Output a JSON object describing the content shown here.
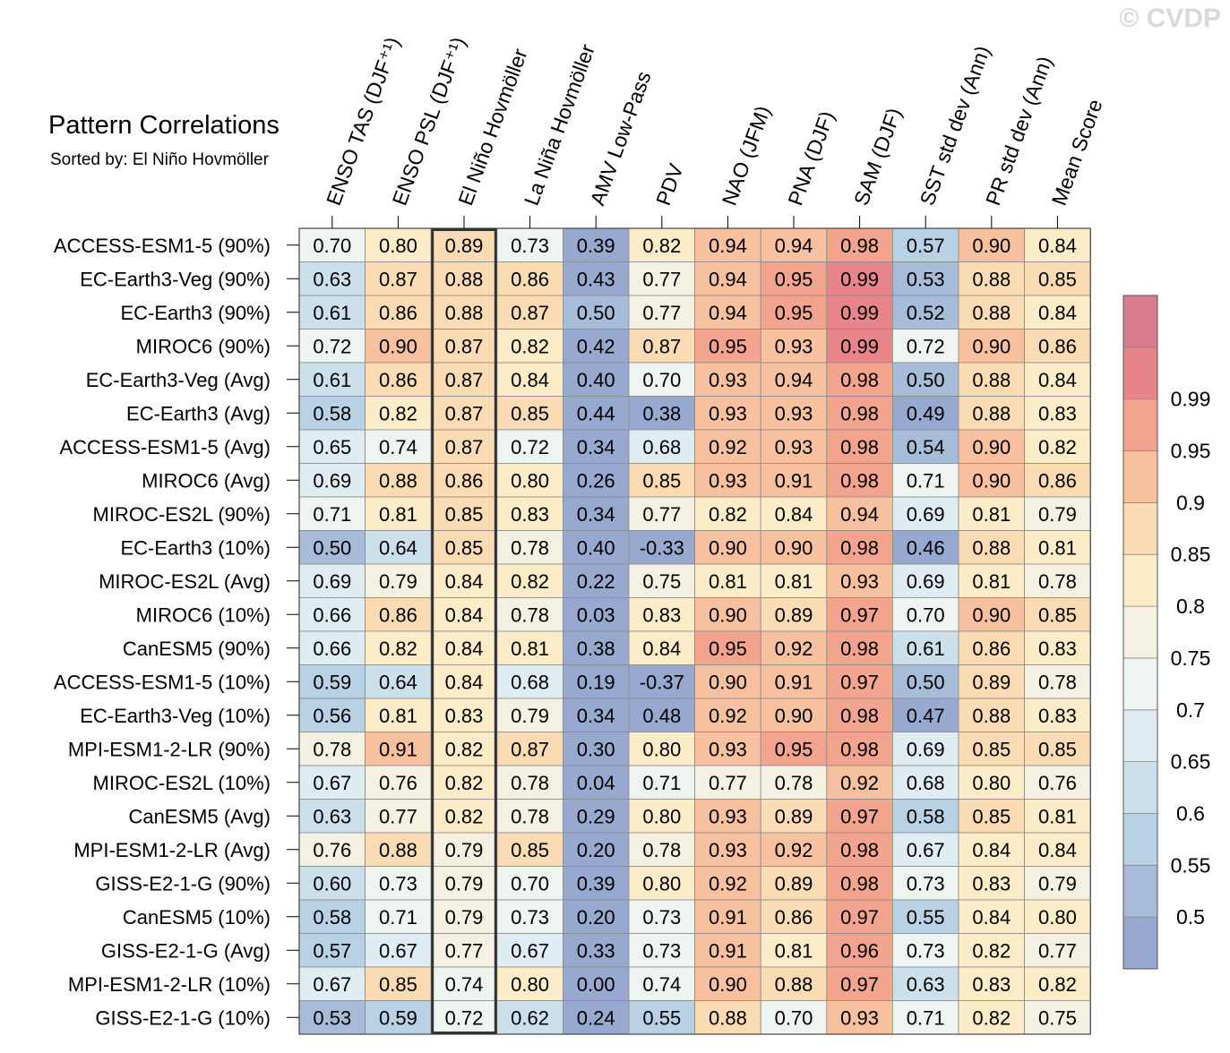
{
  "watermark": "© CVDP",
  "chart_data": {
    "type": "heatmap",
    "title": "Pattern Correlations",
    "subtitle": "Sorted by: El Niño Hovmöller",
    "sorted_column": "El Niño Hovmöller",
    "columns": [
      "ENSO TAS (DJF⁺¹)",
      "ENSO PSL (DJF⁺¹)",
      "El Niño Hovmöller",
      "La Niña Hovmöller",
      "AMV Low-Pass",
      "PDV",
      "NAO (JFM)",
      "PNA (DJF)",
      "SAM (DJF)",
      "SST std dev (Ann)",
      "PR std dev (Ann)",
      "Mean Score"
    ],
    "rows": [
      "ACCESS-ESM1-5 (90%)",
      "EC-Earth3-Veg (90%)",
      "EC-Earth3 (90%)",
      "MIROC6 (90%)",
      "EC-Earth3-Veg (Avg)",
      "EC-Earth3 (Avg)",
      "ACCESS-ESM1-5 (Avg)",
      "MIROC6 (Avg)",
      "MIROC-ES2L (90%)",
      "EC-Earth3 (10%)",
      "MIROC-ES2L (Avg)",
      "MIROC6 (10%)",
      "CanESM5 (90%)",
      "ACCESS-ESM1-5 (10%)",
      "EC-Earth3-Veg (10%)",
      "MPI-ESM1-2-LR (90%)",
      "MIROC-ES2L (10%)",
      "CanESM5 (Avg)",
      "MPI-ESM1-2-LR (Avg)",
      "GISS-E2-1-G (90%)",
      "CanESM5 (10%)",
      "GISS-E2-1-G (Avg)",
      "MPI-ESM1-2-LR (10%)",
      "GISS-E2-1-G (10%)"
    ],
    "values": [
      [
        "0.70",
        "0.80",
        "0.89",
        "0.73",
        "0.39",
        "0.82",
        "0.94",
        "0.94",
        "0.98",
        "0.57",
        "0.90",
        "0.84"
      ],
      [
        "0.63",
        "0.87",
        "0.88",
        "0.86",
        "0.43",
        "0.77",
        "0.94",
        "0.95",
        "0.99",
        "0.53",
        "0.88",
        "0.85"
      ],
      [
        "0.61",
        "0.86",
        "0.88",
        "0.87",
        "0.50",
        "0.77",
        "0.94",
        "0.95",
        "0.99",
        "0.52",
        "0.88",
        "0.84"
      ],
      [
        "0.72",
        "0.90",
        "0.87",
        "0.82",
        "0.42",
        "0.87",
        "0.95",
        "0.93",
        "0.99",
        "0.72",
        "0.90",
        "0.86"
      ],
      [
        "0.61",
        "0.86",
        "0.87",
        "0.84",
        "0.40",
        "0.70",
        "0.93",
        "0.94",
        "0.98",
        "0.50",
        "0.88",
        "0.84"
      ],
      [
        "0.58",
        "0.82",
        "0.87",
        "0.85",
        "0.44",
        "0.38",
        "0.93",
        "0.93",
        "0.98",
        "0.49",
        "0.88",
        "0.83"
      ],
      [
        "0.65",
        "0.74",
        "0.87",
        "0.72",
        "0.34",
        "0.68",
        "0.92",
        "0.93",
        "0.98",
        "0.54",
        "0.90",
        "0.82"
      ],
      [
        "0.69",
        "0.88",
        "0.86",
        "0.80",
        "0.26",
        "0.85",
        "0.93",
        "0.91",
        "0.98",
        "0.71",
        "0.90",
        "0.86"
      ],
      [
        "0.71",
        "0.81",
        "0.85",
        "0.83",
        "0.34",
        "0.77",
        "0.82",
        "0.84",
        "0.94",
        "0.69",
        "0.81",
        "0.79"
      ],
      [
        "0.50",
        "0.64",
        "0.85",
        "0.78",
        "0.40",
        "-0.33",
        "0.90",
        "0.90",
        "0.98",
        "0.46",
        "0.88",
        "0.81"
      ],
      [
        "0.69",
        "0.79",
        "0.84",
        "0.82",
        "0.22",
        "0.75",
        "0.81",
        "0.81",
        "0.93",
        "0.69",
        "0.81",
        "0.78"
      ],
      [
        "0.66",
        "0.86",
        "0.84",
        "0.78",
        "0.03",
        "0.83",
        "0.90",
        "0.89",
        "0.97",
        "0.70",
        "0.90",
        "0.85"
      ],
      [
        "0.66",
        "0.82",
        "0.84",
        "0.81",
        "0.38",
        "0.84",
        "0.95",
        "0.92",
        "0.98",
        "0.61",
        "0.86",
        "0.83"
      ],
      [
        "0.59",
        "0.64",
        "0.84",
        "0.68",
        "0.19",
        "-0.37",
        "0.90",
        "0.91",
        "0.97",
        "0.50",
        "0.89",
        "0.78"
      ],
      [
        "0.56",
        "0.81",
        "0.83",
        "0.79",
        "0.34",
        "0.48",
        "0.92",
        "0.90",
        "0.98",
        "0.47",
        "0.88",
        "0.83"
      ],
      [
        "0.78",
        "0.91",
        "0.82",
        "0.87",
        "0.30",
        "0.80",
        "0.93",
        "0.95",
        "0.98",
        "0.69",
        "0.85",
        "0.85"
      ],
      [
        "0.67",
        "0.76",
        "0.82",
        "0.78",
        "0.04",
        "0.71",
        "0.77",
        "0.78",
        "0.92",
        "0.68",
        "0.80",
        "0.76"
      ],
      [
        "0.63",
        "0.77",
        "0.82",
        "0.78",
        "0.29",
        "0.80",
        "0.93",
        "0.89",
        "0.97",
        "0.58",
        "0.85",
        "0.81"
      ],
      [
        "0.76",
        "0.88",
        "0.79",
        "0.85",
        "0.20",
        "0.78",
        "0.93",
        "0.92",
        "0.98",
        "0.67",
        "0.84",
        "0.84"
      ],
      [
        "0.60",
        "0.73",
        "0.79",
        "0.70",
        "0.39",
        "0.80",
        "0.92",
        "0.89",
        "0.98",
        "0.73",
        "0.83",
        "0.79"
      ],
      [
        "0.58",
        "0.71",
        "0.79",
        "0.73",
        "0.20",
        "0.73",
        "0.91",
        "0.86",
        "0.97",
        "0.55",
        "0.84",
        "0.80"
      ],
      [
        "0.57",
        "0.67",
        "0.77",
        "0.67",
        "0.33",
        "0.73",
        "0.91",
        "0.81",
        "0.96",
        "0.73",
        "0.82",
        "0.77"
      ],
      [
        "0.67",
        "0.85",
        "0.74",
        "0.80",
        "0.00",
        "0.74",
        "0.90",
        "0.88",
        "0.97",
        "0.63",
        "0.83",
        "0.82"
      ],
      [
        "0.53",
        "0.59",
        "0.72",
        "0.62",
        "0.24",
        "0.55",
        "0.88",
        "0.70",
        "0.93",
        "0.71",
        "0.82",
        "0.75"
      ]
    ],
    "colorbar": {
      "levels": [
        0.5,
        0.55,
        0.6,
        0.65,
        0.7,
        0.75,
        0.8,
        0.85,
        0.9,
        0.95,
        0.99
      ],
      "labels": [
        "0.5",
        "0.55",
        "0.6",
        "0.65",
        "0.7",
        "0.75",
        "0.8",
        "0.85",
        "0.9",
        "0.95",
        "0.99"
      ],
      "colors": [
        "#98a9cf",
        "#a6bcd9",
        "#b8d1e4",
        "#cce0ec",
        "#dfecf2",
        "#eef4f0",
        "#f4f1e3",
        "#fcecc7",
        "#fbdbb3",
        "#f7c09e",
        "#f3a48f",
        "#e8858a",
        "#d97a8f"
      ]
    }
  }
}
